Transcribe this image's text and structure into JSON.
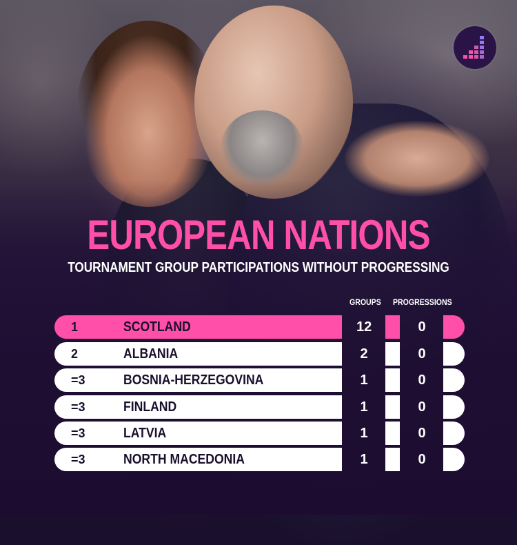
{
  "title": "EUROPEAN NATIONS",
  "subtitle": "TOURNAMENT GROUP PARTICIPATIONS WITHOUT PROGRESSING",
  "columns": {
    "groups": "GROUPS",
    "progressions": "PROGRESSIONS"
  },
  "colors": {
    "accent": "#ff4fa8",
    "row": "#ffffff",
    "background": "#1e0f33"
  },
  "logo": {
    "icon": "stepped-bars-logo-icon"
  },
  "rows": [
    {
      "rank": "1",
      "nation": "SCOTLAND",
      "groups": "12",
      "progressions": "0",
      "highlight": true
    },
    {
      "rank": "2",
      "nation": "ALBANIA",
      "groups": "2",
      "progressions": "0",
      "highlight": false
    },
    {
      "rank": "=3",
      "nation": "BOSNIA-HERZEGOVINA",
      "groups": "1",
      "progressions": "0",
      "highlight": false
    },
    {
      "rank": "=3",
      "nation": "FINLAND",
      "groups": "1",
      "progressions": "0",
      "highlight": false
    },
    {
      "rank": "=3",
      "nation": "LATVIA",
      "groups": "1",
      "progressions": "0",
      "highlight": false
    },
    {
      "rank": "=3",
      "nation": "NORTH MACEDONIA",
      "groups": "1",
      "progressions": "0",
      "highlight": false
    }
  ]
}
